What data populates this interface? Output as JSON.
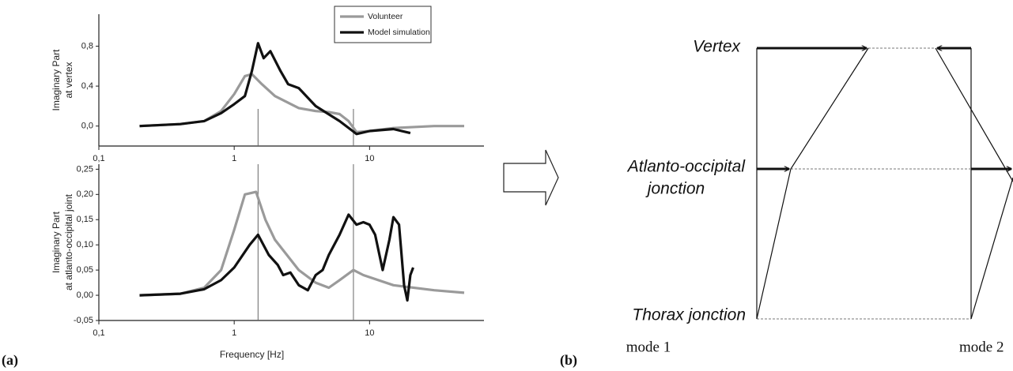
{
  "chart_data": [
    {
      "type": "line",
      "xscale": "log",
      "xlim": [
        0.1,
        70
      ],
      "xticks": [
        {
          "value": 0.1,
          "label": "0,1"
        },
        1,
        10
      ],
      "ylim": [
        -0.2,
        1.12
      ],
      "yticks": [
        {
          "value": 0,
          "label": "0,0"
        },
        {
          "value": 0.4,
          "label": "0,4"
        },
        {
          "value": 0.8,
          "label": "0,8"
        }
      ],
      "ylabel": [
        "Imaginary Part",
        "at vertex"
      ],
      "legend": "upper right",
      "vlines": [
        1.5,
        7.6
      ],
      "series": [
        {
          "name": "Volunteer",
          "color": "#9a9a9a",
          "x": [
            0.2,
            0.4,
            0.6,
            0.8,
            1.0,
            1.2,
            1.35,
            1.6,
            2,
            3,
            4,
            5,
            6,
            7,
            8,
            10,
            15,
            30,
            50
          ],
          "values": [
            0.0,
            0.02,
            0.05,
            0.15,
            0.32,
            0.5,
            0.52,
            0.42,
            0.3,
            0.18,
            0.15,
            0.14,
            0.12,
            0.05,
            -0.06,
            -0.05,
            -0.02,
            0.0,
            0.0
          ]
        },
        {
          "name": "Model simulation",
          "color": "#111111",
          "x": [
            0.2,
            0.4,
            0.6,
            0.8,
            1.0,
            1.2,
            1.35,
            1.5,
            1.65,
            1.85,
            2.2,
            2.5,
            3,
            4,
            6,
            7.5,
            8,
            10,
            15,
            20
          ],
          "values": [
            0.0,
            0.02,
            0.05,
            0.13,
            0.22,
            0.3,
            0.55,
            0.83,
            0.68,
            0.75,
            0.55,
            0.42,
            0.38,
            0.2,
            0.05,
            -0.05,
            -0.08,
            -0.05,
            -0.03,
            -0.07
          ]
        }
      ]
    },
    {
      "type": "line",
      "xscale": "log",
      "xlim": [
        0.1,
        70
      ],
      "xticks": [
        {
          "value": 0.1,
          "label": "0,1"
        },
        1,
        10
      ],
      "xlabel": "Frequency [Hz]",
      "ylim": [
        -0.05,
        0.26
      ],
      "yticks": [
        {
          "value": -0.05,
          "label": "-0,05"
        },
        {
          "value": 0,
          "label": "0,00"
        },
        {
          "value": 0.05,
          "label": "0,05"
        },
        {
          "value": 0.1,
          "label": "0,10"
        },
        {
          "value": 0.15,
          "label": "0,15"
        },
        {
          "value": 0.2,
          "label": "0,20"
        },
        {
          "value": 0.25,
          "label": "0,25"
        }
      ],
      "ylabel": [
        "Imaginary Part",
        "at atlanto-occipital joint"
      ],
      "vlines": [
        1.5,
        7.6
      ],
      "series": [
        {
          "name": "Volunteer",
          "color": "#9a9a9a",
          "x": [
            0.2,
            0.4,
            0.6,
            0.8,
            1.0,
            1.2,
            1.45,
            1.7,
            2,
            3,
            4,
            5,
            6,
            7.6,
            9,
            15,
            30,
            50
          ],
          "values": [
            0.0,
            0.003,
            0.015,
            0.05,
            0.13,
            0.2,
            0.205,
            0.15,
            0.11,
            0.05,
            0.025,
            0.015,
            0.03,
            0.05,
            0.04,
            0.02,
            0.01,
            0.005
          ]
        },
        {
          "name": "Model simulation",
          "color": "#111111",
          "x": [
            0.2,
            0.4,
            0.6,
            0.8,
            1.0,
            1.3,
            1.5,
            1.8,
            2.1,
            2.3,
            2.6,
            3,
            3.5,
            4,
            4.5,
            5,
            6,
            7,
            8,
            9,
            10,
            11,
            12.5,
            14,
            15,
            16.5,
            18,
            19,
            20,
            21
          ],
          "values": [
            0.0,
            0.003,
            0.012,
            0.03,
            0.055,
            0.1,
            0.12,
            0.08,
            0.06,
            0.04,
            0.045,
            0.02,
            0.01,
            0.04,
            0.05,
            0.08,
            0.12,
            0.16,
            0.14,
            0.145,
            0.14,
            0.12,
            0.05,
            0.11,
            0.155,
            0.14,
            0.02,
            -0.01,
            0.04,
            0.055
          ]
        }
      ]
    }
  ],
  "panels": {
    "a": "(a)",
    "b": "(b)"
  },
  "diagram": {
    "levels": {
      "vertex": "Vertex",
      "atlanto": [
        "Atlanto-occipital",
        "jonction"
      ],
      "thorax": "Thorax jonction"
    },
    "modes": [
      "mode 1",
      "mode 2"
    ]
  }
}
